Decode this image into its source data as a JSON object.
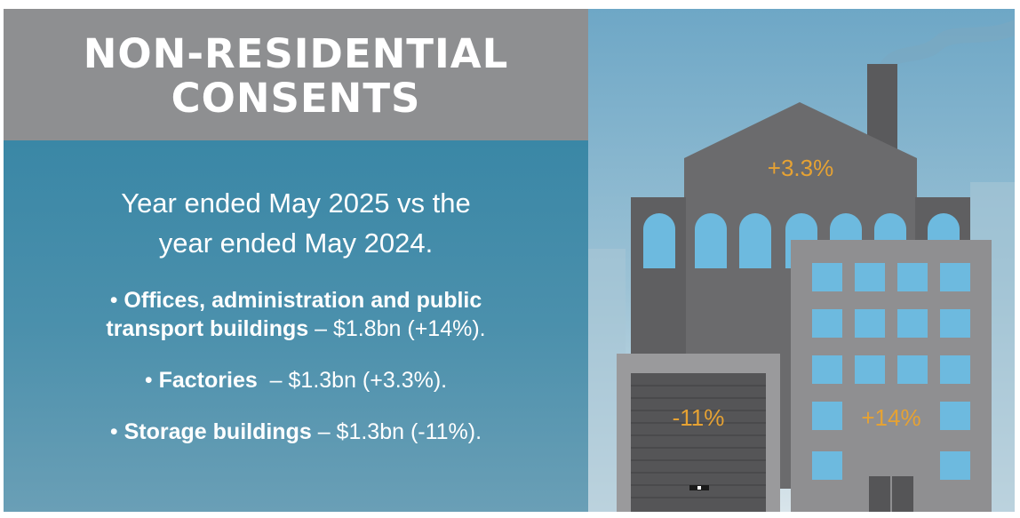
{
  "header": {
    "title_line1": "NON-RESIDENTIAL",
    "title_line2": "CONSENTS"
  },
  "intro": {
    "line1": "Year ended May 2025 vs the",
    "line2": "year ended May 2024."
  },
  "bullets": [
    {
      "name_line1": "Offices, administration and public",
      "name_line2": "transport buildings",
      "value": " – $1.8bn (+14%)."
    },
    {
      "name": "Factories",
      "value": "  – $1.3bn (+3.3%)."
    },
    {
      "name": "Storage buildings",
      "value": " – $1.3bn (-11%)."
    }
  ],
  "illustration": {
    "factory_change": "+3.3%",
    "storage_change": "-11%",
    "offices_change": "+14%"
  },
  "colors": {
    "header_gray": "#8e8f91",
    "panel_blue": "#3a87a6",
    "accent_orange": "#e6a233",
    "window_blue": "#6dbadf"
  }
}
